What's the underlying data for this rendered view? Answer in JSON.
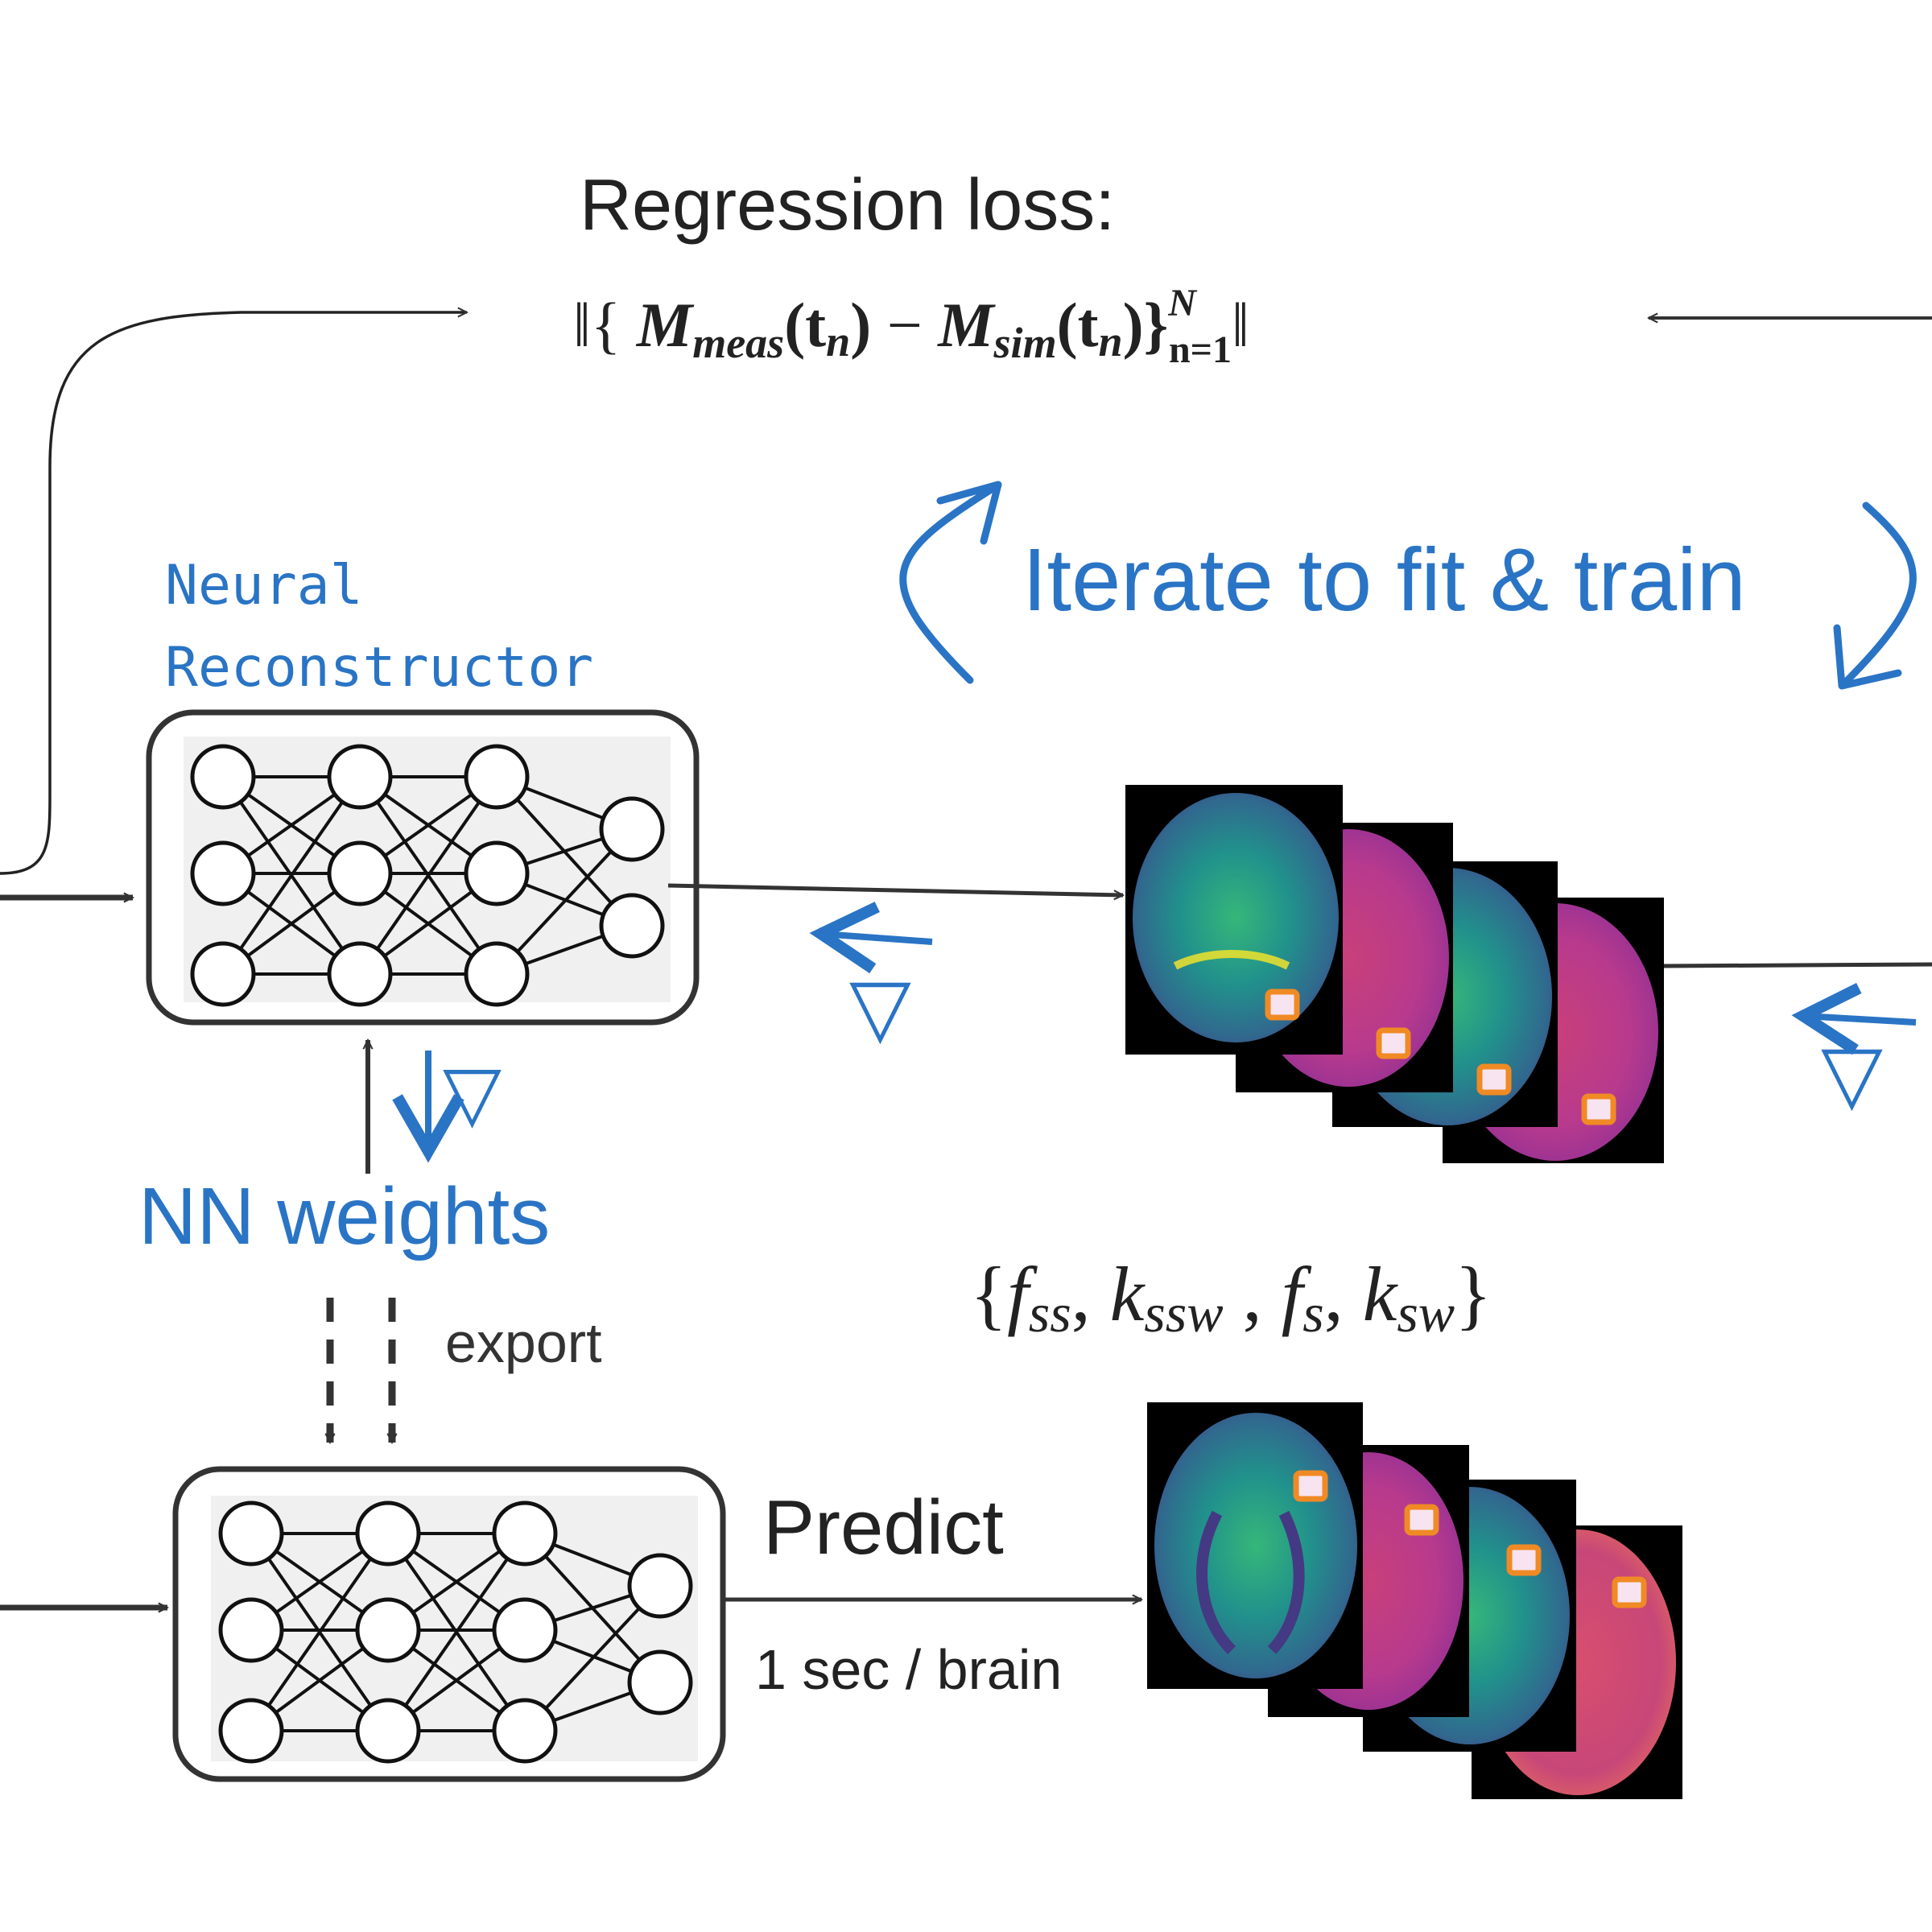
{
  "loss": {
    "title": "Regression loss:",
    "formula": {
      "open": "‖{ ",
      "m1": "M",
      "sub1": "meas",
      "arg1": "(t",
      "arg1_sub": "n",
      "arg1_close": ")",
      "minus": " − ",
      "m2": "M",
      "sub2": "sim",
      "arg2": "(t",
      "arg2_sub": "n",
      "arg2_close": ")}",
      "sup": "N",
      "lower": "n=1",
      "close": "‖"
    }
  },
  "iterate_label": "Iterate to fit & train",
  "reconstructor_label_line1": "Neural",
  "reconstructor_label_line2": "Reconstructor",
  "nn_weights_label": "NN weights",
  "export_label": "export",
  "predict_label": "Predict",
  "timing_label": "1 sec / brain",
  "gradient_symbol": "▽",
  "params": {
    "open": "{",
    "f1": "f",
    "f1_sub": "ss",
    "sep1": ", ",
    "k1": "k",
    "k1_sub": "ssw",
    "sep2": " , ",
    "f2": "f",
    "f2_sub": "s",
    "sep3": ", ",
    "k2": "k",
    "k2_sub": "sw",
    "close": "}"
  },
  "colors": {
    "accent_blue": "#2a74c5",
    "dark": "#333333",
    "viridis_bg": "#3b3f8f",
    "magma_bg": "#b03a8a",
    "marker": "#f08a24"
  }
}
